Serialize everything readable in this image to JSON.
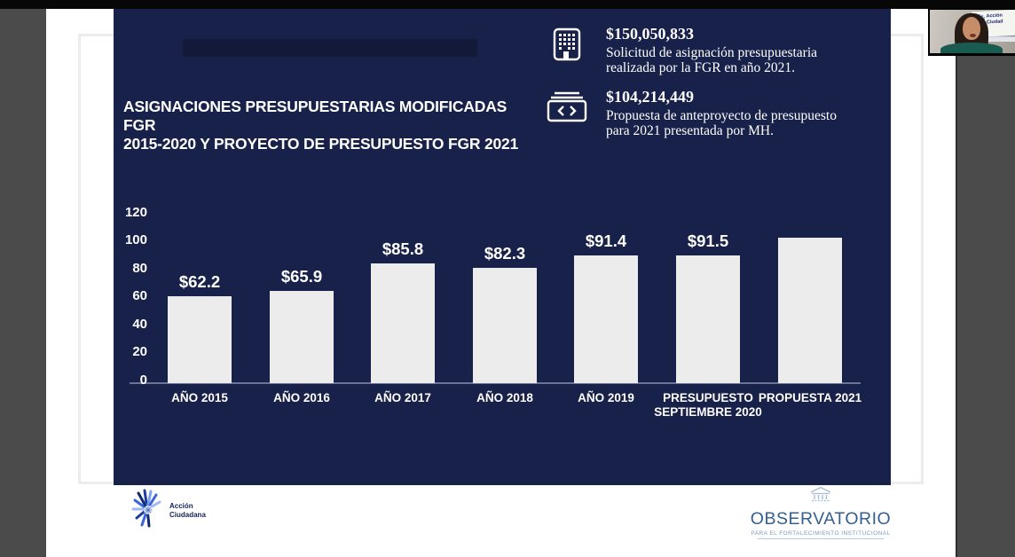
{
  "slide": {
    "title_line1": "ASIGNACIONES PRESUPUESTARIAS MODIFICADAS FGR",
    "title_line2": "2015-2020  Y PROYECTO DE PRESUPUESTO FGR 2021",
    "stats": [
      {
        "icon": "building-icon",
        "amount": "$150,050,833",
        "desc_line1": "Solicitud de asignación presupuestaria",
        "desc_line2": "realizada por la FGR en año 2021."
      },
      {
        "icon": "code-window-icon",
        "amount": "$104,214,449",
        "desc_line1": "Propuesta de anteproyecto de presupuesto",
        "desc_line2": "para 2021 presentada por MH."
      }
    ],
    "footer": {
      "accion_line1": "Acción",
      "accion_line2": "Ciudadana",
      "observatorio_title": "OBSERVATORIO",
      "observatorio_subtitle": "PARA EL FORTALECIMIENTO INSTITUCIONAL"
    }
  },
  "webcam": {
    "banner_line1": "Acción",
    "banner_line2": "Ciudad"
  },
  "chart_data": {
    "type": "bar",
    "title": "ASIGNACIONES PRESUPUESTARIAS MODIFICADAS FGR 2015-2020 Y PROYECTO DE PRESUPUESTO FGR 2021",
    "categories": [
      "AÑO 2015",
      "AÑO 2016",
      "AÑO 2017",
      "AÑO 2018",
      "AÑO 2019",
      "PRESUPUESTO SEPTIEMBRE 2020",
      "PROPUESTA 2021"
    ],
    "values": [
      62.2,
      65.9,
      85.8,
      82.3,
      91.4,
      91.5,
      104.2
    ],
    "bar_labels": [
      "$62.2",
      "$65.9",
      "$85.8",
      "$82.3",
      "$91.4",
      "$91.5",
      ""
    ],
    "y_ticks": [
      0,
      20,
      40,
      60,
      80,
      100,
      120
    ],
    "ylim": [
      0,
      120
    ],
    "xlabel": "",
    "ylabel": "",
    "grid": false,
    "legend": false,
    "bar_color": "#ececec",
    "background_color": "#182149"
  },
  "colors": {
    "navy": "#182149",
    "bar": "#ececec",
    "observatorio_blue": "#33608f",
    "accion_navy": "#14235a",
    "accion_blues": [
      "#0f2a72",
      "#1b3d9e",
      "#3c66d6",
      "#7aa0ef",
      "#9db9f5"
    ]
  }
}
